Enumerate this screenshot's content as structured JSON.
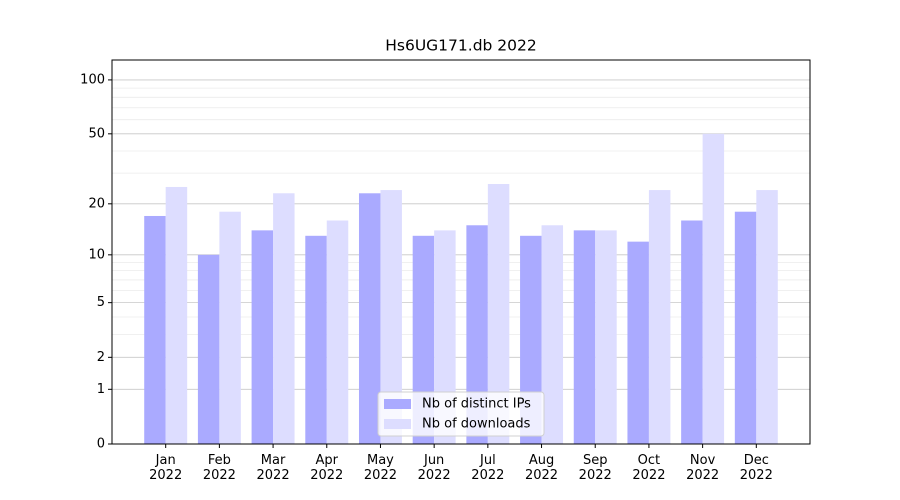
{
  "chart_data": {
    "type": "bar",
    "title": "Hs6UG171.db 2022",
    "categories": [
      "Jan 2022",
      "Feb 2022",
      "Mar 2022",
      "Apr 2022",
      "May 2022",
      "Jun 2022",
      "Jul 2022",
      "Aug 2022",
      "Sep 2022",
      "Oct 2022",
      "Nov 2022",
      "Dec 2022"
    ],
    "series": [
      {
        "name": "Nb of distinct IPs",
        "color": "#aaaaff",
        "values": [
          17,
          10,
          14,
          13,
          23,
          13,
          15,
          13,
          14,
          12,
          16,
          18
        ]
      },
      {
        "name": "Nb of downloads",
        "color": "#ddddff",
        "values": [
          25,
          18,
          23,
          16,
          24,
          14,
          26,
          15,
          14,
          24,
          50,
          24
        ]
      }
    ],
    "yscale": "log1p",
    "ylim": [
      0,
      129
    ],
    "yticks": [
      0,
      1,
      2,
      5,
      10,
      20,
      50,
      100
    ],
    "minor_yticks": [
      3,
      4,
      6,
      7,
      8,
      9,
      30,
      40,
      60,
      70,
      80,
      90
    ],
    "grid": true,
    "legend": "lower center"
  }
}
